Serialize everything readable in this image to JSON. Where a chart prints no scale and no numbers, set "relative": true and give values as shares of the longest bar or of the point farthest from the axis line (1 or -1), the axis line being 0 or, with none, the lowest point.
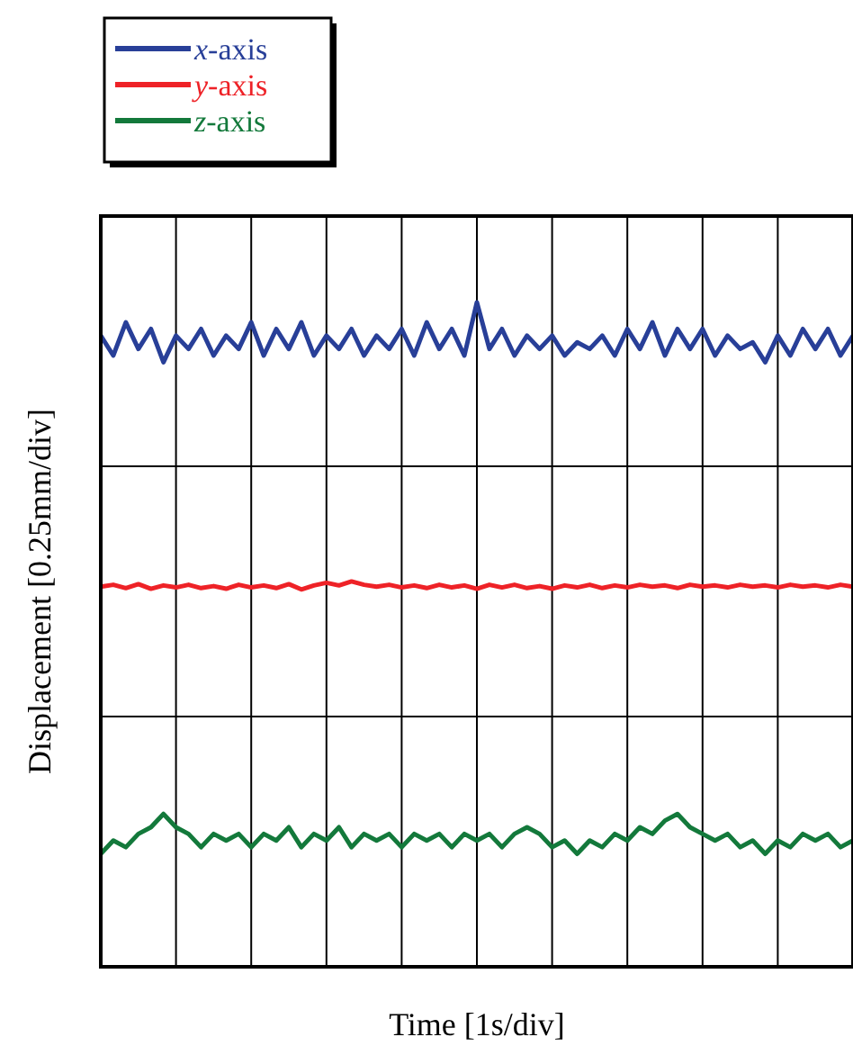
{
  "chart_data": {
    "type": "line",
    "relative": true,
    "xlabel": "Time [1s/div]",
    "ylabel": "Displacement [0.25mm/div]",
    "grid": true,
    "legend": "top left",
    "categories": [
      null,
      null,
      null,
      null,
      null,
      null,
      null,
      null,
      null,
      null,
      null,
      null,
      null,
      null,
      null,
      null,
      null,
      null,
      null,
      null,
      null,
      null,
      null,
      null,
      null,
      null,
      null,
      null,
      null,
      null,
      null,
      null,
      null,
      null,
      null,
      null,
      null,
      null,
      null,
      null,
      null,
      null,
      null,
      null,
      null,
      null,
      null,
      null,
      null,
      null,
      null,
      null,
      null,
      null,
      null,
      null,
      null,
      null,
      null,
      null,
      null
    ],
    "series": [
      {
        "name": "x-axis",
        "color": "#283f98",
        "values": [
          0.95,
          0.92,
          0.97,
          0.93,
          0.96,
          0.91,
          0.95,
          0.93,
          0.96,
          0.92,
          0.95,
          0.93,
          0.97,
          0.92,
          0.96,
          0.93,
          0.97,
          0.92,
          0.95,
          0.93,
          0.96,
          0.92,
          0.95,
          0.93,
          0.96,
          0.92,
          0.97,
          0.93,
          0.96,
          0.92,
          1.0,
          0.93,
          0.96,
          0.92,
          0.95,
          0.93,
          0.95,
          0.92,
          0.94,
          0.93,
          0.95,
          0.92,
          0.96,
          0.93,
          0.97,
          0.92,
          0.96,
          0.93,
          0.96,
          0.92,
          0.95,
          0.93,
          0.94,
          0.91,
          0.95,
          0.92,
          0.96,
          0.93,
          0.96,
          0.92,
          0.95
        ]
      },
      {
        "name": "y-axis",
        "color": "#ee2227",
        "values": [
          0.572,
          0.575,
          0.57,
          0.576,
          0.569,
          0.574,
          0.571,
          0.575,
          0.57,
          0.573,
          0.569,
          0.575,
          0.571,
          0.574,
          0.57,
          0.576,
          0.568,
          0.574,
          0.578,
          0.574,
          0.58,
          0.575,
          0.572,
          0.575,
          0.571,
          0.574,
          0.57,
          0.575,
          0.571,
          0.574,
          0.569,
          0.575,
          0.571,
          0.575,
          0.57,
          0.573,
          0.569,
          0.574,
          0.571,
          0.575,
          0.57,
          0.574,
          0.571,
          0.575,
          0.572,
          0.574,
          0.57,
          0.575,
          0.572,
          0.574,
          0.571,
          0.575,
          0.572,
          0.574,
          0.571,
          0.575,
          0.572,
          0.574,
          0.571,
          0.575,
          0.572
        ]
      },
      {
        "name": "z-axis",
        "color": "#13793b",
        "values": [
          0.17,
          0.19,
          0.18,
          0.2,
          0.21,
          0.23,
          0.21,
          0.2,
          0.18,
          0.2,
          0.19,
          0.2,
          0.18,
          0.2,
          0.19,
          0.21,
          0.18,
          0.2,
          0.19,
          0.21,
          0.18,
          0.2,
          0.19,
          0.2,
          0.18,
          0.2,
          0.19,
          0.2,
          0.18,
          0.2,
          0.19,
          0.2,
          0.18,
          0.2,
          0.21,
          0.2,
          0.18,
          0.19,
          0.17,
          0.19,
          0.18,
          0.2,
          0.19,
          0.21,
          0.2,
          0.22,
          0.23,
          0.21,
          0.2,
          0.19,
          0.2,
          0.18,
          0.19,
          0.17,
          0.19,
          0.18,
          0.2,
          0.19,
          0.2,
          0.18,
          0.19
        ]
      }
    ]
  }
}
